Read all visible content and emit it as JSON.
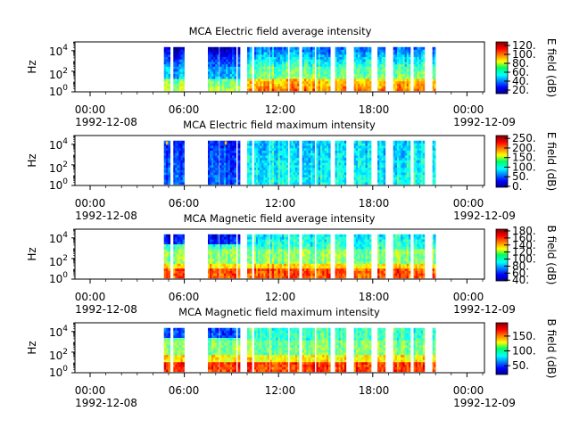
{
  "chart_data": [
    {
      "type": "heatmap",
      "title": "MCA  Electric field average intensity",
      "ylabel": "Hz",
      "y_scale": "log",
      "y_ticks": [
        {
          "base": "10",
          "exp": "0"
        },
        {
          "base": "10",
          "exp": "2"
        },
        {
          "base": "10",
          "exp": "4"
        }
      ],
      "x_ticks": [
        {
          "hour": "00:00",
          "date": "1992-12-08"
        },
        {
          "hour": "06:00",
          "date": ""
        },
        {
          "hour": "12:00",
          "date": ""
        },
        {
          "hour": "18:00",
          "date": ""
        },
        {
          "hour": "00:00",
          "date": "1992-12-09"
        }
      ],
      "colorbar": {
        "label": "E field (dB)",
        "min": 12,
        "max": 128,
        "ticks": [
          "20.",
          "40.",
          "60.",
          "80.",
          "100.",
          "120."
        ]
      },
      "data_intervals_hours": [
        [
          4.7,
          5.1
        ],
        [
          5.3,
          6.0
        ],
        [
          7.5,
          8.2
        ],
        [
          8.25,
          9.3
        ],
        [
          9.4,
          9.55
        ],
        [
          10.0,
          10.3
        ],
        [
          10.45,
          11.4
        ],
        [
          11.45,
          12.6
        ],
        [
          12.7,
          13.3
        ],
        [
          13.5,
          14.3
        ],
        [
          14.4,
          15.3
        ],
        [
          15.6,
          16.3
        ],
        [
          16.8,
          17.9
        ],
        [
          18.3,
          18.8
        ],
        [
          19.3,
          20.4
        ],
        [
          20.6,
          21.3
        ],
        [
          21.8,
          22.0
        ]
      ],
      "intensity_profile": "high (80-120 dB) below 100 Hz, moderate (40-80 dB) 100 Hz - 10 kHz, low (20-40 dB) above 10 kHz"
    },
    {
      "type": "heatmap",
      "title": "MCA  Electric field maximum intensity",
      "ylabel": "Hz",
      "y_scale": "log",
      "y_ticks": [
        {
          "base": "10",
          "exp": "0"
        },
        {
          "base": "10",
          "exp": "2"
        },
        {
          "base": "10",
          "exp": "4"
        }
      ],
      "x_ticks": [
        {
          "hour": "00:00",
          "date": "1992-12-08"
        },
        {
          "hour": "06:00",
          "date": ""
        },
        {
          "hour": "12:00",
          "date": ""
        },
        {
          "hour": "18:00",
          "date": ""
        },
        {
          "hour": "00:00",
          "date": "1992-12-09"
        }
      ],
      "colorbar": {
        "label": "E field (dB)",
        "min": -5,
        "max": 265,
        "ticks": [
          "0.",
          "50.",
          "100.",
          "150.",
          "200.",
          "250."
        ]
      },
      "data_intervals_hours": [
        [
          4.7,
          5.1
        ],
        [
          5.3,
          6.0
        ],
        [
          7.5,
          8.2
        ],
        [
          8.25,
          9.3
        ],
        [
          9.4,
          9.55
        ],
        [
          10.0,
          10.3
        ],
        [
          10.45,
          11.4
        ],
        [
          11.45,
          12.6
        ],
        [
          12.7,
          13.3
        ],
        [
          13.5,
          14.3
        ],
        [
          14.4,
          15.3
        ],
        [
          15.6,
          16.3
        ],
        [
          16.8,
          17.9
        ],
        [
          18.3,
          18.8
        ],
        [
          19.3,
          20.4
        ],
        [
          20.6,
          21.3
        ],
        [
          21.8,
          22.0
        ]
      ],
      "intensity_profile": "mostly 50-100 dB, low (0-50 dB) around 04:30-09:00, bright bursts near 10 kHz at 05:00 and 08:30"
    },
    {
      "type": "heatmap",
      "title": "MCA  Magnetic field average intensity",
      "ylabel": "Hz",
      "y_scale": "log",
      "y_ticks": [
        {
          "base": "10",
          "exp": "0"
        },
        {
          "base": "10",
          "exp": "2"
        },
        {
          "base": "10",
          "exp": "4"
        }
      ],
      "x_ticks": [
        {
          "hour": "00:00",
          "date": "1992-12-08"
        },
        {
          "hour": "06:00",
          "date": ""
        },
        {
          "hour": "12:00",
          "date": ""
        },
        {
          "hour": "18:00",
          "date": ""
        },
        {
          "hour": "00:00",
          "date": "1992-12-09"
        }
      ],
      "colorbar": {
        "label": "B field (dB)",
        "min": 38,
        "max": 185,
        "ticks": [
          "40.",
          "60.",
          "80.",
          "100.",
          "120.",
          "140.",
          "160.",
          "180."
        ]
      },
      "data_intervals_hours": [
        [
          4.7,
          5.1
        ],
        [
          5.3,
          6.0
        ],
        [
          7.5,
          8.2
        ],
        [
          8.25,
          9.3
        ],
        [
          9.4,
          9.55
        ],
        [
          10.0,
          10.3
        ],
        [
          10.45,
          11.4
        ],
        [
          11.45,
          12.6
        ],
        [
          12.7,
          13.3
        ],
        [
          13.5,
          14.3
        ],
        [
          14.4,
          15.3
        ],
        [
          15.6,
          16.3
        ],
        [
          16.8,
          17.9
        ],
        [
          18.3,
          18.8
        ],
        [
          19.3,
          20.4
        ],
        [
          20.6,
          21.3
        ],
        [
          21.8,
          22.0
        ]
      ],
      "intensity_profile": "high (140-180 dB) below 30 Hz, decreasing to ~90 dB near 10 kHz"
    },
    {
      "type": "heatmap",
      "title": "MCA  Magnetic field maximum intensity",
      "ylabel": "Hz",
      "y_scale": "log",
      "y_ticks": [
        {
          "base": "10",
          "exp": "0"
        },
        {
          "base": "10",
          "exp": "2"
        },
        {
          "base": "10",
          "exp": "4"
        }
      ],
      "x_ticks": [
        {
          "hour": "00:00",
          "date": "1992-12-08"
        },
        {
          "hour": "06:00",
          "date": ""
        },
        {
          "hour": "12:00",
          "date": ""
        },
        {
          "hour": "18:00",
          "date": ""
        },
        {
          "hour": "00:00",
          "date": "1992-12-09"
        }
      ],
      "colorbar": {
        "label": "B field (dB)",
        "min": 20,
        "max": 195,
        "ticks": [
          "50.",
          "100.",
          "150."
        ]
      },
      "data_intervals_hours": [
        [
          4.7,
          5.1
        ],
        [
          5.3,
          6.0
        ],
        [
          7.5,
          8.2
        ],
        [
          8.25,
          9.3
        ],
        [
          9.4,
          9.55
        ],
        [
          10.0,
          10.3
        ],
        [
          10.45,
          11.4
        ],
        [
          11.45,
          12.6
        ],
        [
          12.7,
          13.3
        ],
        [
          13.5,
          14.3
        ],
        [
          14.4,
          15.3
        ],
        [
          15.6,
          16.3
        ],
        [
          16.8,
          17.9
        ],
        [
          18.3,
          18.8
        ],
        [
          19.3,
          20.4
        ],
        [
          20.6,
          21.3
        ],
        [
          21.8,
          22.0
        ]
      ],
      "intensity_profile": "high (150-190 dB) below 30 Hz, ~100 dB mid band, ~70 dB near 10 kHz"
    }
  ]
}
